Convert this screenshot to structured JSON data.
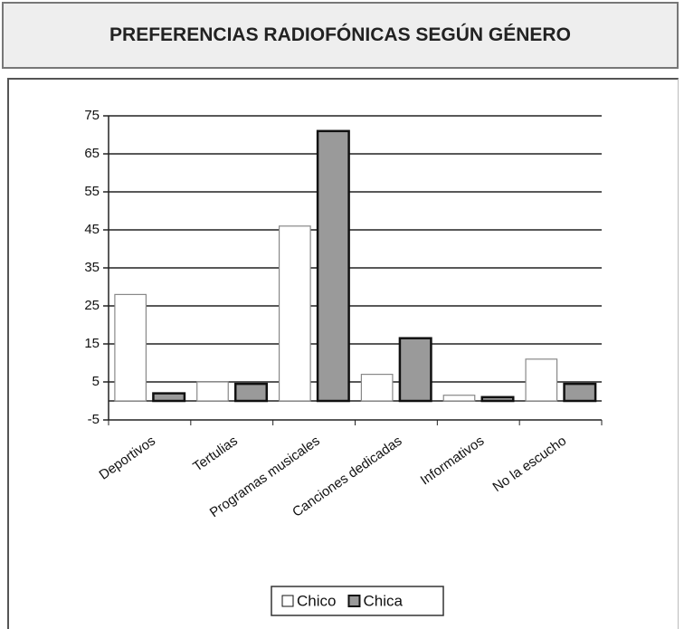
{
  "chart_data": {
    "type": "bar",
    "title": "PREFERENCIAS RADIOFÓNICAS SEGÚN GÉNERO",
    "categories": [
      "Deportivos",
      "Tertulias",
      "Programas musicales",
      "Canciones dedicadas",
      "Informativos",
      "No la escucho"
    ],
    "series": [
      {
        "name": "Chico",
        "color": "#ffffff",
        "values": [
          28,
          5,
          46,
          7,
          1.5,
          11
        ]
      },
      {
        "name": "Chica",
        "color": "#9a9a9a",
        "values": [
          2,
          4.5,
          71,
          16.5,
          1,
          4.5
        ]
      }
    ],
    "ylim": [
      -5,
      75
    ],
    "yticks": [
      -5,
      5,
      15,
      25,
      35,
      45,
      55,
      65,
      75
    ],
    "grid": true,
    "legend": "bottom"
  }
}
